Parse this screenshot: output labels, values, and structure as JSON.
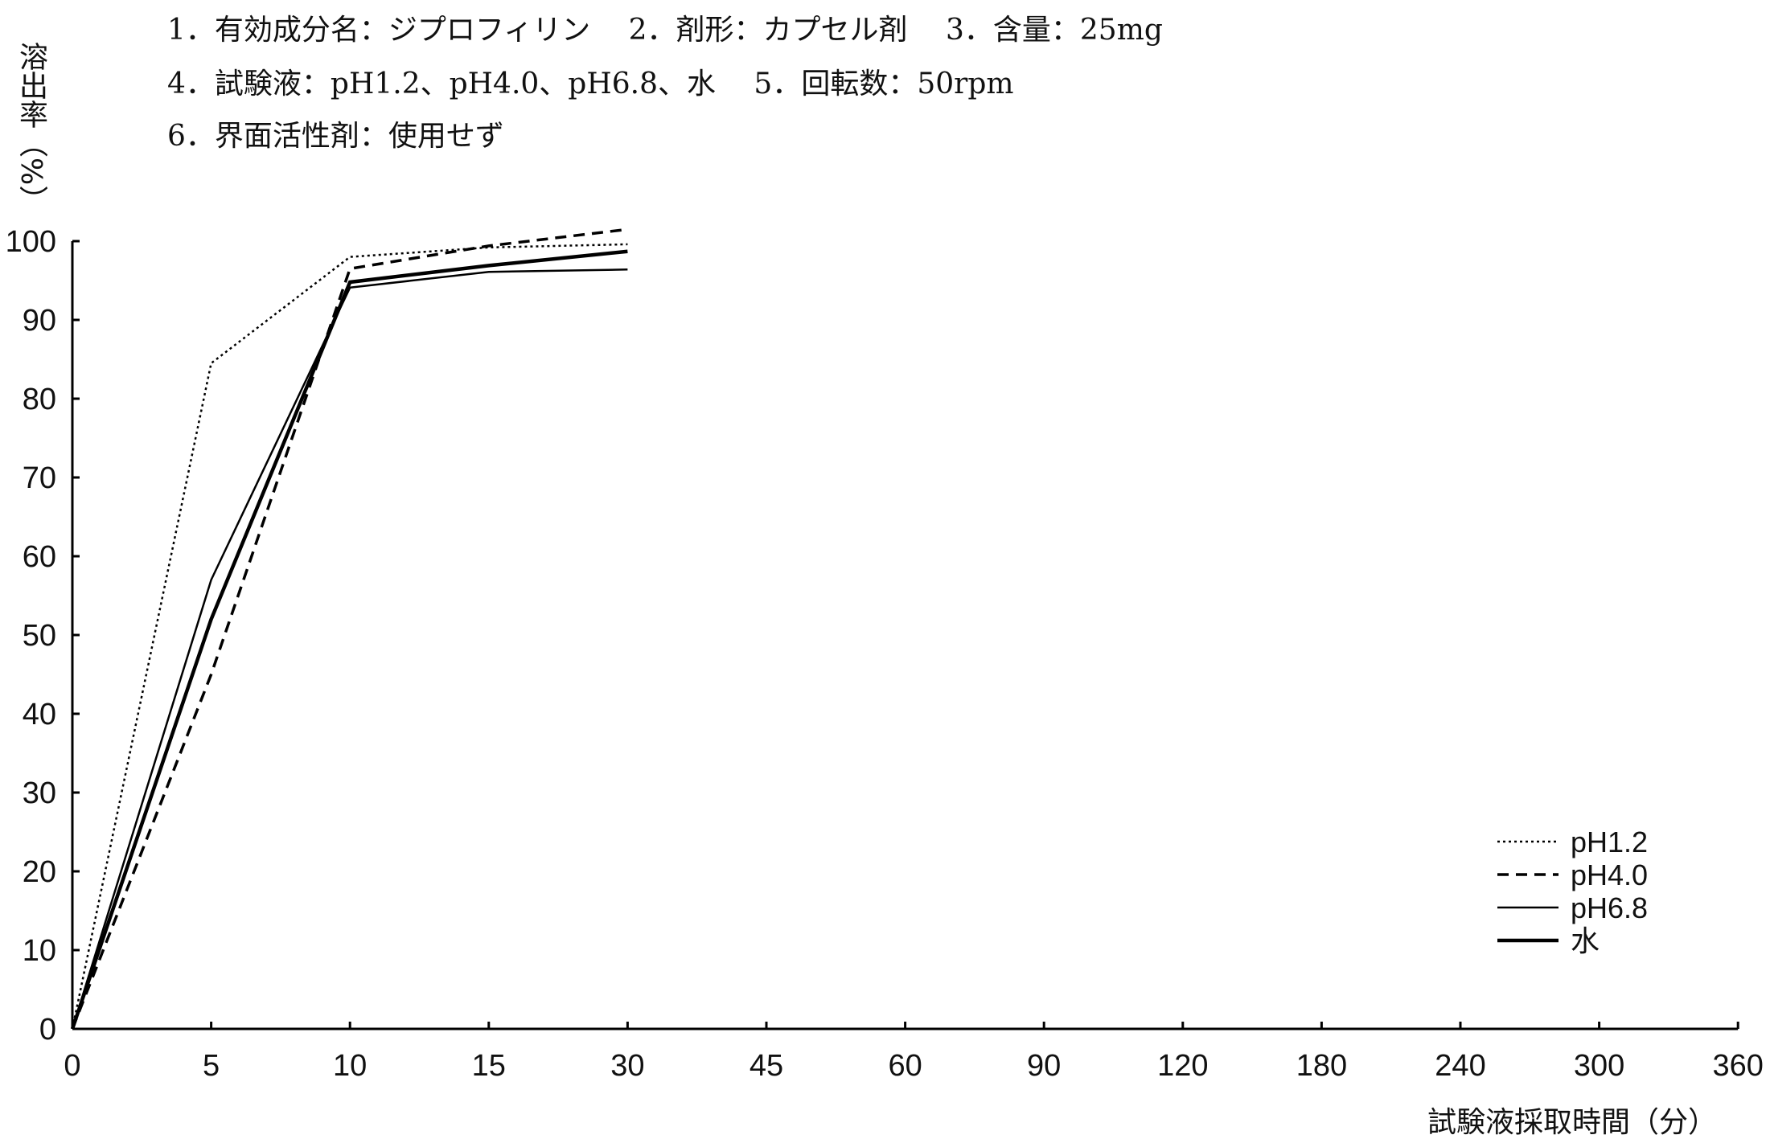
{
  "header": {
    "line1": "1．有効成分名：ジプロフィリン　 2．剤形：カプセル剤　 3．含量：25mg",
    "line2": "4．試験液：pH1.2、pH4.0、pH6.8、水　 5．回転数：50rpm",
    "line3": "6．界面活性剤：使用せず"
  },
  "chart_data": {
    "type": "line",
    "title": "",
    "xlabel": "試験液採取時間（分）",
    "ylabel": "溶出率（%）",
    "categories": [
      "0",
      "5",
      "10",
      "15",
      "30",
      "45",
      "60",
      "90",
      "120",
      "180",
      "240",
      "300",
      "360"
    ],
    "yticks": [
      "0",
      "10",
      "20",
      "30",
      "40",
      "50",
      "60",
      "70",
      "80",
      "90",
      "100"
    ],
    "ylim": [
      0,
      100
    ],
    "legend_position": "bottom-right",
    "series": [
      {
        "name": "pH1.2",
        "style": "dotted",
        "x": [
          "0",
          "5",
          "10",
          "15",
          "30"
        ],
        "values": [
          0,
          84.5,
          98.0,
          99.2,
          99.6
        ]
      },
      {
        "name": "pH4.0",
        "style": "dashed",
        "x": [
          "0",
          "5",
          "10",
          "15",
          "30"
        ],
        "values": [
          0,
          45.0,
          96.5,
          99.4,
          101.5
        ]
      },
      {
        "name": "pH6.8",
        "style": "thin",
        "x": [
          "0",
          "5",
          "10",
          "15",
          "30"
        ],
        "values": [
          0,
          57.0,
          94.1,
          96.1,
          96.4
        ]
      },
      {
        "name": "水",
        "style": "thick",
        "x": [
          "0",
          "5",
          "10",
          "15",
          "30"
        ],
        "values": [
          0,
          52.0,
          94.8,
          96.9,
          98.7
        ]
      }
    ]
  }
}
